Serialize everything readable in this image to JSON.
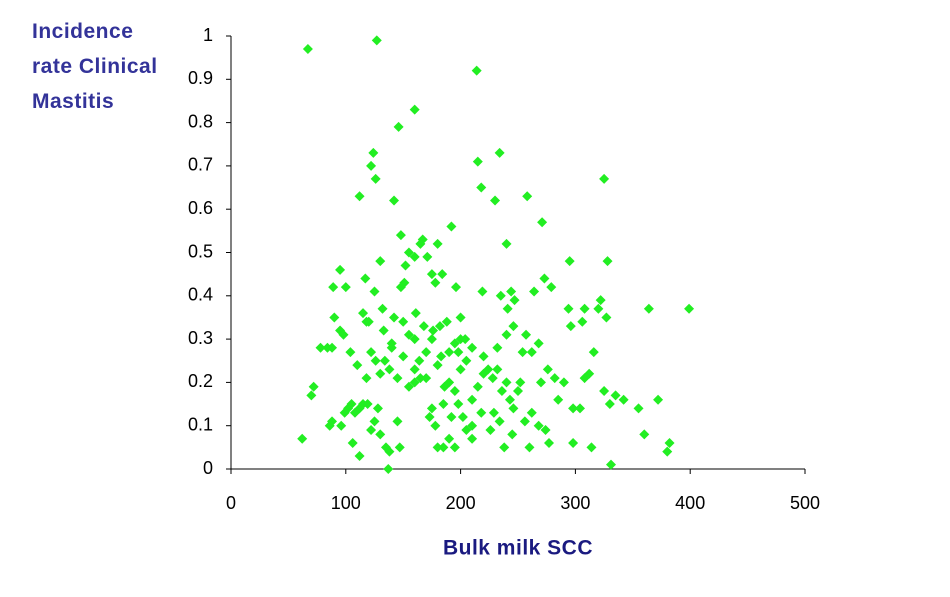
{
  "chart_data": {
    "type": "scatter",
    "y_label": "Incidence rate Clinical Mastitis",
    "x_label": "Bulk milk SCC",
    "color": "#22ee22",
    "xlim": [
      0,
      500
    ],
    "xticks": [
      0,
      100,
      200,
      300,
      400,
      500
    ],
    "ylim": [
      0,
      1
    ],
    "yticks": [
      0,
      0.1,
      0.2,
      0.3,
      0.4,
      0.5,
      0.6,
      0.7,
      0.8,
      0.9,
      1
    ],
    "grid": false,
    "x": [
      67,
      127,
      214,
      160,
      146,
      215,
      234,
      124,
      122,
      126,
      112,
      218,
      258,
      230,
      142,
      325,
      271,
      192,
      240,
      148,
      167,
      165,
      180,
      130,
      155,
      184,
      196,
      160,
      171,
      95,
      117,
      100,
      89,
      125,
      151,
      178,
      175,
      152,
      148,
      219,
      244,
      235,
      264,
      273,
      279,
      295,
      328,
      399,
      364,
      320,
      308,
      322,
      327,
      294,
      306,
      296,
      247,
      241,
      246,
      200,
      188,
      182,
      168,
      176,
      161,
      150,
      142,
      133,
      115,
      118,
      90,
      95,
      98,
      88,
      84,
      78,
      62,
      70,
      72,
      88,
      86,
      96,
      99,
      102,
      105,
      108,
      112,
      115,
      119,
      106,
      112,
      122,
      125,
      128,
      130,
      135,
      137,
      138,
      147,
      155,
      160,
      165,
      170,
      180,
      183,
      190,
      195,
      200,
      204,
      210,
      205,
      200,
      195,
      198,
      202,
      205,
      190,
      185,
      180,
      195,
      210,
      220,
      224,
      228,
      232,
      236,
      240,
      243,
      246,
      250,
      252,
      229,
      226,
      234,
      238,
      245,
      256,
      260,
      262,
      268,
      274,
      277,
      270,
      276,
      282,
      285,
      290,
      298,
      304,
      308,
      312,
      316,
      325,
      330,
      335,
      342,
      355,
      360,
      372,
      382,
      380,
      331,
      314,
      298,
      262,
      268,
      257,
      254,
      232,
      220,
      240,
      130,
      134,
      138,
      140,
      145,
      150,
      126,
      122,
      118,
      110,
      104,
      164,
      170,
      175,
      160,
      155,
      186,
      190,
      175,
      173,
      178,
      185,
      210,
      215,
      218,
      160,
      120,
      132,
      140,
      145,
      210,
      198,
      192
    ],
    "values": [
      0.97,
      0.99,
      0.92,
      0.83,
      0.79,
      0.71,
      0.73,
      0.73,
      0.7,
      0.67,
      0.63,
      0.65,
      0.63,
      0.62,
      0.62,
      0.67,
      0.57,
      0.56,
      0.52,
      0.54,
      0.53,
      0.52,
      0.52,
      0.48,
      0.5,
      0.45,
      0.42,
      0.49,
      0.49,
      0.46,
      0.44,
      0.42,
      0.42,
      0.41,
      0.43,
      0.43,
      0.45,
      0.47,
      0.42,
      0.41,
      0.41,
      0.4,
      0.41,
      0.44,
      0.42,
      0.48,
      0.48,
      0.37,
      0.37,
      0.37,
      0.37,
      0.39,
      0.35,
      0.37,
      0.34,
      0.33,
      0.39,
      0.37,
      0.33,
      0.35,
      0.34,
      0.33,
      0.33,
      0.32,
      0.36,
      0.34,
      0.35,
      0.32,
      0.36,
      0.34,
      0.35,
      0.32,
      0.31,
      0.28,
      0.28,
      0.28,
      0.07,
      0.17,
      0.19,
      0.11,
      0.1,
      0.1,
      0.13,
      0.14,
      0.15,
      0.13,
      0.14,
      0.15,
      0.15,
      0.06,
      0.03,
      0.09,
      0.11,
      0.14,
      0.08,
      0.05,
      0.0,
      0.04,
      0.05,
      0.19,
      0.2,
      0.21,
      0.21,
      0.24,
      0.26,
      0.27,
      0.29,
      0.3,
      0.3,
      0.28,
      0.25,
      0.23,
      0.18,
      0.15,
      0.12,
      0.09,
      0.07,
      0.05,
      0.05,
      0.05,
      0.07,
      0.22,
      0.23,
      0.21,
      0.23,
      0.18,
      0.2,
      0.16,
      0.14,
      0.18,
      0.2,
      0.13,
      0.09,
      0.11,
      0.05,
      0.08,
      0.11,
      0.05,
      0.13,
      0.1,
      0.09,
      0.06,
      0.2,
      0.23,
      0.21,
      0.16,
      0.2,
      0.14,
      0.14,
      0.21,
      0.22,
      0.27,
      0.18,
      0.15,
      0.17,
      0.16,
      0.14,
      0.08,
      0.16,
      0.06,
      0.04,
      0.01,
      0.05,
      0.06,
      0.27,
      0.29,
      0.31,
      0.27,
      0.28,
      0.26,
      0.31,
      0.22,
      0.25,
      0.23,
      0.28,
      0.21,
      0.26,
      0.25,
      0.27,
      0.21,
      0.24,
      0.27,
      0.25,
      0.27,
      0.3,
      0.3,
      0.31,
      0.19,
      0.2,
      0.14,
      0.12,
      0.1,
      0.15,
      0.16,
      0.19,
      0.13,
      0.23,
      0.34,
      0.37,
      0.29,
      0.11,
      0.1,
      0.27,
      0.12
    ]
  }
}
